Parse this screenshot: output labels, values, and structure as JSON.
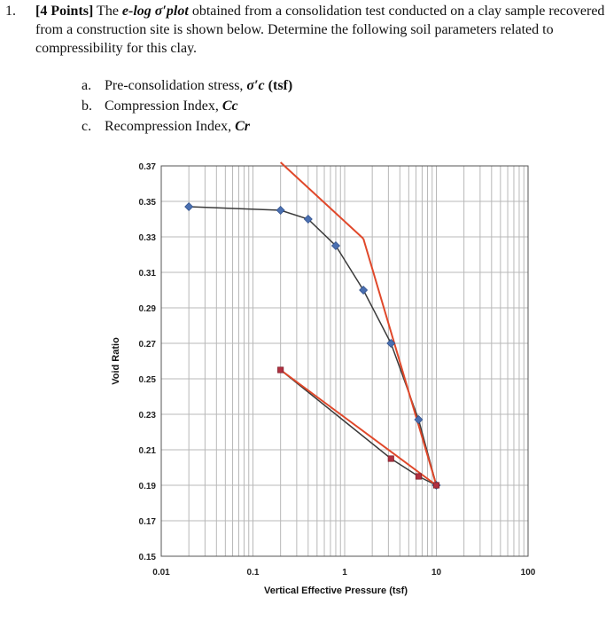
{
  "question": {
    "number": "1.",
    "points": "[4 Points]",
    "intro_1": "The",
    "plot_name": "e-log σ′plot",
    "intro_2": "obtained from a consolidation test conducted on a clay sample recovered from a construction site is shown below. Determine the following soil parameters related to compressibility for this clay.",
    "parts": [
      {
        "letter": "a.",
        "text": "Pre-consolidation stress,",
        "symbol": "σ′c",
        "unit": "(tsf)"
      },
      {
        "letter": "b.",
        "text": "Compression Index,",
        "symbol": "Cc",
        "unit": ""
      },
      {
        "letter": "c.",
        "text": "Recompression Index,",
        "symbol": "Cr",
        "unit": ""
      }
    ]
  },
  "chart_data": {
    "type": "scatter",
    "xscale": "log",
    "xlim": [
      0.01,
      100
    ],
    "ylim": [
      0.15,
      0.37
    ],
    "xlabel": "Vertical Effective Pressure (tsf)",
    "ylabel": "Void Ratio",
    "xticks": [
      "0.01",
      "0.1",
      "1",
      "10",
      "100"
    ],
    "yticks": [
      "0.37",
      "0.35",
      "0.33",
      "0.31",
      "0.29",
      "0.27",
      "0.25",
      "0.23",
      "0.21",
      "0.19",
      "0.17",
      "0.15"
    ],
    "grid": true,
    "series": [
      {
        "marker": "diamond",
        "color": "#4a6fb0",
        "line_color": "#3a3a3a",
        "x": [
          0.02,
          0.2,
          0.4,
          0.8,
          1.6,
          3.2,
          6.4,
          10
        ],
        "y": [
          0.347,
          0.345,
          0.34,
          0.325,
          0.3,
          0.27,
          0.227,
          0.19
        ]
      },
      {
        "marker": "square",
        "color": "#b03040",
        "line_color": "#3a3a3a",
        "x": [
          10,
          6.4,
          3.2,
          0.2
        ],
        "y": [
          0.19,
          0.195,
          0.205,
          0.255
        ]
      }
    ],
    "construction_lines": {
      "color": "#e0482a",
      "segments": [
        {
          "x": [
            0.2,
            1.6
          ],
          "y": [
            0.372,
            0.329
          ]
        },
        {
          "x": [
            1.6,
            10
          ],
          "y": [
            0.329,
            0.19
          ]
        },
        {
          "x": [
            0.2,
            10
          ],
          "y": [
            0.255,
            0.19
          ]
        }
      ]
    }
  }
}
